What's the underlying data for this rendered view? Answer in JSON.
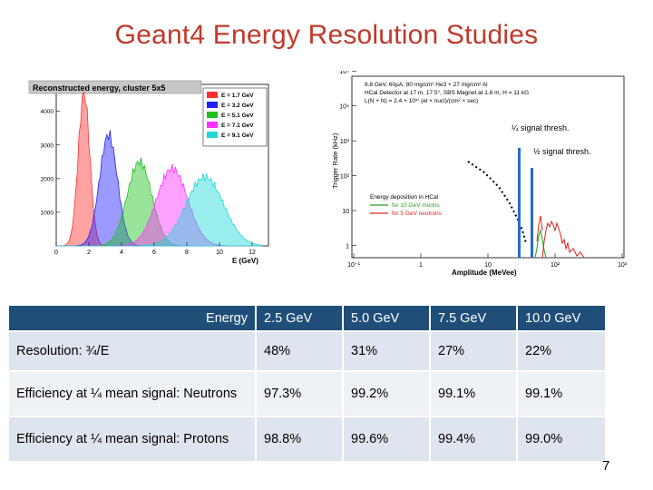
{
  "title": "Geant4 Energy Resolution Studies",
  "left_plot": {
    "title": "Reconstructed energy, cluster 5x5",
    "xlabel": "E (GeV)",
    "x_ticks": [
      "0",
      "2",
      "4",
      "6",
      "8",
      "10",
      "12"
    ],
    "y_ticks": [
      "1000",
      "2000",
      "3000",
      "4000"
    ],
    "legend": [
      {
        "label": "E = 1.7 GeV",
        "color": "#ff3030"
      },
      {
        "label": "E = 3.2 GeV",
        "color": "#2020ff"
      },
      {
        "label": "E = 5.1 GeV",
        "color": "#20c020"
      },
      {
        "label": "E = 7.1 GeV",
        "color": "#ff30ff"
      },
      {
        "label": "E = 9.1 GeV",
        "color": "#20d8d8"
      }
    ]
  },
  "right_plot": {
    "header_lines": [
      "8.8 GeV, 60µA; 80 mg/cm² He3 + 27 mg/cm² Al",
      "HCal Detector at 17 m, 17.5°, SBS Magnet at 1.6 m, H = 11 kG",
      "L(N + N) = 2.4 × 10³⁷ (el × nucl)/(cm² × sec)"
    ],
    "ylabel": "Trigger Rate (kHz)",
    "xlabel": "Amplitude (MeVee)",
    "y_ticks": [
      "1",
      "10",
      "10²",
      "10³",
      "10⁴",
      "10⁵"
    ],
    "x_ticks": [
      "10⁻¹",
      "1",
      "10",
      "10²",
      "10³"
    ],
    "annotation_quarter": "¼ signal thresh.",
    "annotation_half": "½ signal thresh.",
    "legend_title": "Energy deposition in HCal",
    "legend": [
      {
        "label": "for 10 GeV muons",
        "color": "#20a020"
      },
      {
        "label": "for 5 GeV neutrons",
        "color": "#e02020"
      }
    ]
  },
  "table": {
    "header_label": "Energy",
    "energies": [
      "2.5 GeV",
      "5.0 GeV",
      "7.5 GeV",
      "10.0 GeV"
    ],
    "rows": [
      {
        "label": "Resolution: ¾/E",
        "values": [
          "48%",
          "31%",
          "27%",
          "22%"
        ]
      },
      {
        "label": "Efficiency at ¼ mean signal: Neutrons",
        "values": [
          "97.3%",
          "99.2%",
          "99.1%",
          "99.1%"
        ]
      },
      {
        "label": "Efficiency at ¼ mean signal: Protons",
        "values": [
          "98.8%",
          "99.6%",
          "99.4%",
          "99.0%"
        ]
      }
    ]
  },
  "page_number": "7"
}
